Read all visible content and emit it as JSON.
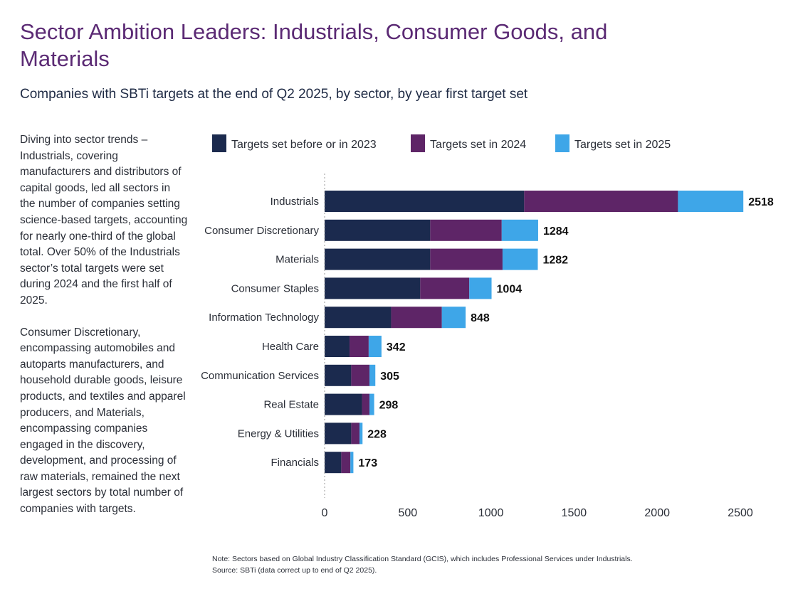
{
  "title": "Sector Ambition Leaders: Industrials, Consumer Goods, and Materials",
  "subtitle": "Companies with SBTi targets at the end of Q2 2025, by sector, by year first target set",
  "commentary": [
    "Diving into sector trends – Industrials, covering manufacturers and distributors of capital goods, led all sectors in the number of companies setting science-based targets, accounting for nearly one-third of the global total. Over 50% of the Industrials sector’s total targets were set during 2024 and the first half of 2025.",
    "Consumer Discretionary, encompassing automobiles and autoparts manufacturers, and household durable goods, leisure products, and textiles and apparel producers, and Materials, encompassing companies engaged in the discovery, development, and processing of raw materials, remained the next largest sectors by total number of companies with targets."
  ],
  "footnote": {
    "note": "Note: Sectors based on Global Industry Classification Standard (GCIS), which includes Professional Services under Industrials.",
    "source": "Source: SBTi (data correct up to end of Q2  2025)."
  },
  "chart_data": {
    "type": "bar",
    "orientation": "horizontal",
    "stacked": true,
    "categories": [
      "Industrials",
      "Consumer Discretionary",
      "Materials",
      "Consumer Staples",
      "Information Technology",
      "Health Care",
      "Communication Services",
      "Real Estate",
      "Energy & Utilities",
      "Financials"
    ],
    "series": [
      {
        "name": "Targets set before or in 2023",
        "color": "#1b2a4e",
        "values": [
          1200,
          635,
          635,
          575,
          400,
          150,
          160,
          225,
          160,
          100
        ]
      },
      {
        "name": "Targets set in 2024",
        "color": "#5e2567",
        "values": [
          925,
          430,
          435,
          295,
          305,
          115,
          110,
          45,
          50,
          55
        ]
      },
      {
        "name": "Targets set in 2025",
        "color": "#3ea6e8",
        "values": [
          393,
          219,
          212,
          134,
          143,
          77,
          35,
          28,
          18,
          18
        ]
      }
    ],
    "totals": [
      2518,
      1284,
      1282,
      1004,
      848,
      342,
      305,
      298,
      228,
      173
    ],
    "xlim": [
      0,
      2500
    ],
    "xticks": [
      0,
      500,
      1000,
      1500,
      2000,
      2500
    ],
    "grid": false,
    "legend_position": "top"
  }
}
